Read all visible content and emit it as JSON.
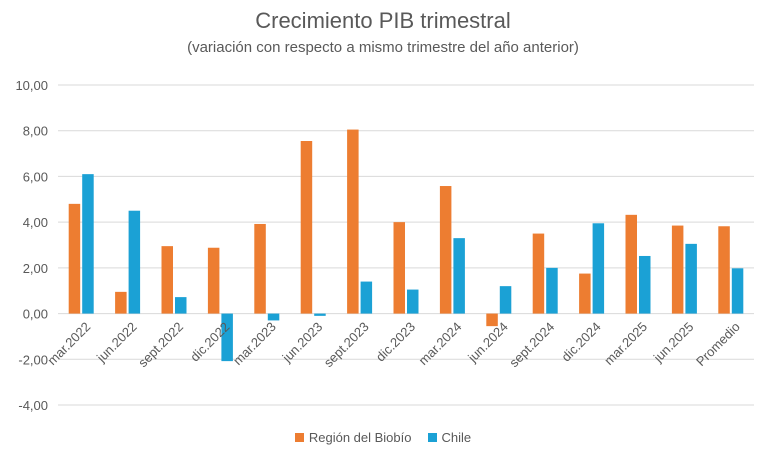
{
  "chart_data": {
    "type": "bar",
    "title": "Crecimiento PIB trimestral",
    "subtitle": "(variación con respecto a mismo trimestre del año anterior)",
    "categories": [
      "mar.2022",
      "jun.2022",
      "sept.2022",
      "dic.2022",
      "mar.2023",
      "jun.2023",
      "sept.2023",
      "dic.2023",
      "mar.2024",
      "jun.2024",
      "sept.2024",
      "dic.2024",
      "mar.2025",
      "jun.2025",
      "Promedio"
    ],
    "series": [
      {
        "name": "Región del Biobío",
        "color": "#ED7D31",
        "values": [
          4.8,
          0.95,
          2.95,
          2.88,
          3.92,
          7.55,
          8.05,
          4.0,
          5.58,
          -0.55,
          3.5,
          1.75,
          4.32,
          3.85,
          3.82
        ]
      },
      {
        "name": "Chile",
        "color": "#1BA1D5",
        "values": [
          6.1,
          4.5,
          0.72,
          -2.08,
          -0.3,
          -0.1,
          1.4,
          1.05,
          3.3,
          1.2,
          2.0,
          3.95,
          2.52,
          3.05,
          1.98
        ]
      }
    ],
    "ylim": [
      -4,
      10
    ],
    "yticks": [
      "-4,00",
      "-2,00",
      "0,00",
      "2,00",
      "4,00",
      "6,00",
      "8,00",
      "10,00"
    ],
    "ytick_values": [
      -4,
      -2,
      0,
      2,
      4,
      6,
      8,
      10
    ],
    "grid": true,
    "legend_position": "bottom"
  }
}
